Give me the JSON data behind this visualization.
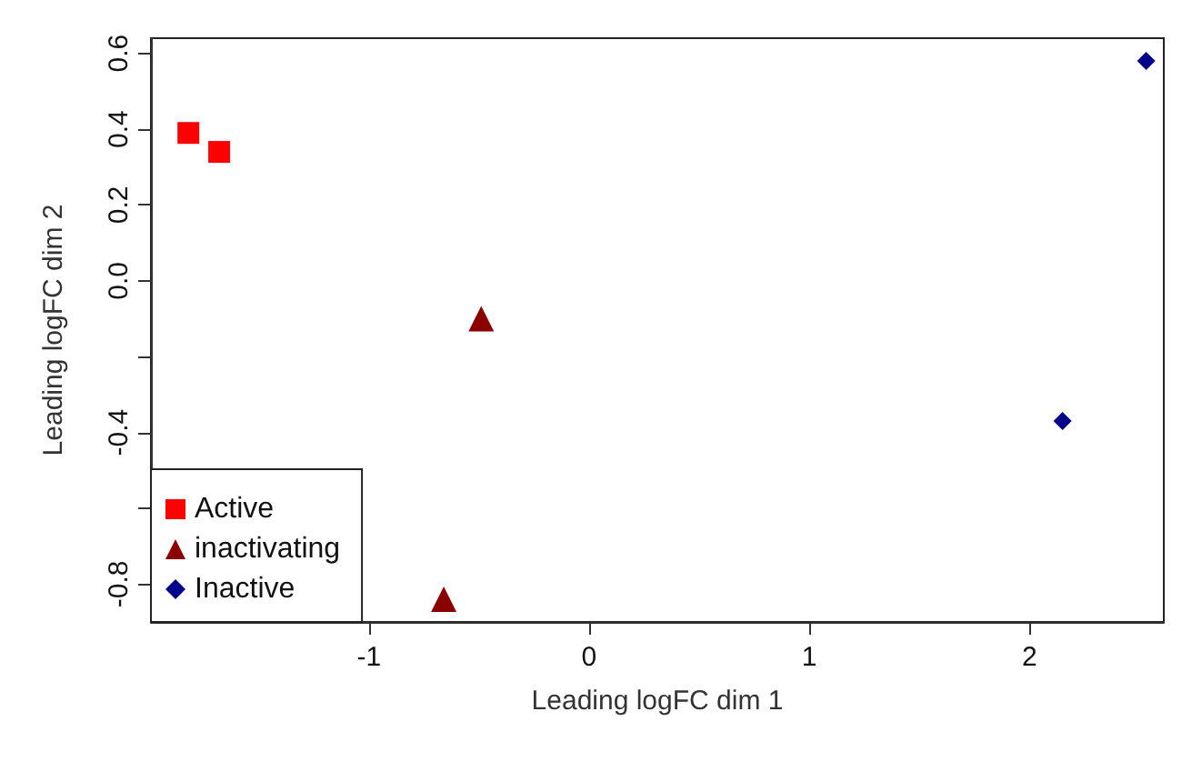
{
  "chart_data": {
    "type": "scatter",
    "xlabel": "Leading logFC dim 1",
    "ylabel": "Leading logFC dim 2",
    "xlim": [
      -1.99,
      2.61
    ],
    "ylim": [
      -0.9,
      0.64
    ],
    "xticks": [
      -1,
      0,
      1,
      2
    ],
    "yticks": [
      {
        "value": -0.8,
        "label": "-0.8"
      },
      {
        "value": -0.6,
        "label": null
      },
      -0.4,
      {
        "value": -0.2,
        "label": null
      },
      {
        "value": 0,
        "label": "0.0"
      },
      0.2,
      0.4,
      0.6
    ],
    "legend": "bottom left",
    "series": [
      {
        "name": "Active",
        "color": "#ff0000",
        "marker": "square",
        "x": [
          -1.82,
          -1.68
        ],
        "values": [
          0.39,
          0.34
        ]
      },
      {
        "name": "inactivating",
        "color": "#8b0000",
        "marker": "triangle",
        "x": [
          -0.49,
          -0.66
        ],
        "values": [
          -0.1,
          -0.84
        ]
      },
      {
        "name": "Inactive",
        "color": "#00008b",
        "marker": "diamond",
        "x": [
          2.53,
          2.15
        ],
        "values": [
          0.58,
          -0.37
        ]
      }
    ]
  }
}
